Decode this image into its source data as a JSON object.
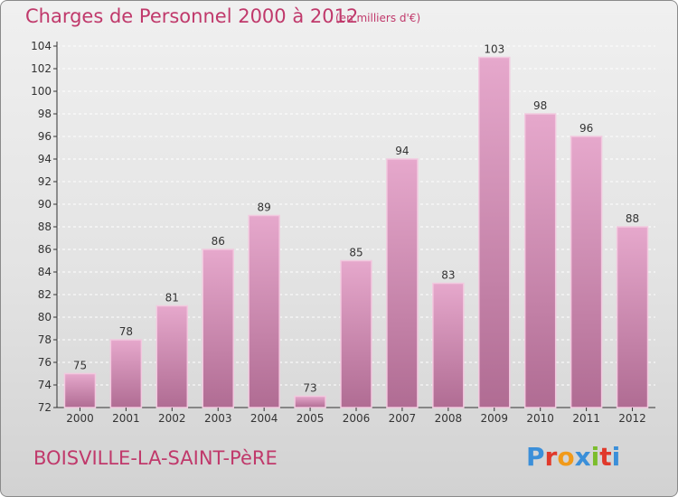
{
  "title": "Charges de Personnel 2000 à 2012",
  "subtitle": "(en milliers d'€)",
  "commune": "BOISVILLE-LA-SAINT-PèRE",
  "logo": "Proxiti",
  "colors": {
    "text": "#c0396b",
    "bar_top": "#e6a8cc",
    "bar_bottom": "#b06c93"
  },
  "chart_data": {
    "type": "bar",
    "categories": [
      "2000",
      "2001",
      "2002",
      "2003",
      "2004",
      "2005",
      "2006",
      "2007",
      "2008",
      "2009",
      "2010",
      "2011",
      "2012"
    ],
    "values": [
      75,
      78,
      81,
      86,
      89,
      73,
      85,
      94,
      83,
      103,
      98,
      96,
      88
    ],
    "ylim": [
      72,
      104
    ],
    "yticks": [
      72,
      74,
      76,
      78,
      80,
      82,
      84,
      86,
      88,
      90,
      92,
      94,
      96,
      98,
      100,
      102,
      104
    ],
    "grid": true,
    "title": "Charges de Personnel 2000 à 2012",
    "subtitle": "(en milliers d'€)"
  }
}
